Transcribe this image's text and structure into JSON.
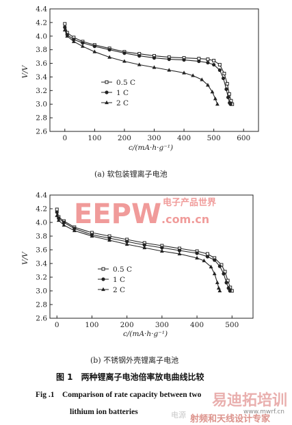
{
  "chart_data": [
    {
      "type": "line",
      "panel_caption": "(a) 软包装锂离子电池",
      "xlabel": "c/(mA·h·g⁻¹)",
      "ylabel": "V/V",
      "xlim": [
        -50,
        650
      ],
      "ylim": [
        2.6,
        4.4
      ],
      "xticks": [
        0,
        100,
        200,
        300,
        400,
        500,
        600
      ],
      "yticks": [
        2.6,
        2.8,
        3.0,
        3.2,
        3.4,
        3.6,
        3.8,
        4.0,
        4.2,
        4.4
      ],
      "legend_position": "left-center",
      "series": [
        {
          "name": "0.5 C",
          "marker": "square",
          "points": [
            [
              0,
              4.18
            ],
            [
              8,
              4.05
            ],
            [
              30,
              3.98
            ],
            [
              60,
              3.92
            ],
            [
              100,
              3.87
            ],
            [
              150,
              3.82
            ],
            [
              200,
              3.77
            ],
            [
              250,
              3.74
            ],
            [
              300,
              3.71
            ],
            [
              350,
              3.69
            ],
            [
              400,
              3.68
            ],
            [
              450,
              3.67
            ],
            [
              480,
              3.66
            ],
            [
              500,
              3.64
            ],
            [
              520,
              3.58
            ],
            [
              535,
              3.45
            ],
            [
              545,
              3.3
            ],
            [
              552,
              3.15
            ],
            [
              558,
              3.05
            ],
            [
              562,
              3.0
            ]
          ]
        },
        {
          "name": "1 C",
          "marker": "circle",
          "points": [
            [
              0,
              4.13
            ],
            [
              8,
              4.02
            ],
            [
              30,
              3.95
            ],
            [
              60,
              3.9
            ],
            [
              100,
              3.85
            ],
            [
              150,
              3.8
            ],
            [
              200,
              3.75
            ],
            [
              250,
              3.71
            ],
            [
              300,
              3.68
            ],
            [
              350,
              3.66
            ],
            [
              400,
              3.65
            ],
            [
              450,
              3.63
            ],
            [
              480,
              3.61
            ],
            [
              500,
              3.58
            ],
            [
              520,
              3.5
            ],
            [
              532,
              3.38
            ],
            [
              542,
              3.22
            ],
            [
              548,
              3.1
            ],
            [
              553,
              3.02
            ],
            [
              556,
              3.0
            ]
          ]
        },
        {
          "name": "2 C",
          "marker": "triangle",
          "points": [
            [
              0,
              4.09
            ],
            [
              8,
              4.0
            ],
            [
              30,
              3.92
            ],
            [
              60,
              3.85
            ],
            [
              100,
              3.77
            ],
            [
              150,
              3.69
            ],
            [
              200,
              3.63
            ],
            [
              250,
              3.58
            ],
            [
              300,
              3.54
            ],
            [
              350,
              3.5
            ],
            [
              400,
              3.46
            ],
            [
              430,
              3.42
            ],
            [
              460,
              3.36
            ],
            [
              480,
              3.28
            ],
            [
              495,
              3.18
            ],
            [
              505,
              3.08
            ],
            [
              512,
              3.0
            ]
          ]
        }
      ]
    },
    {
      "type": "line",
      "panel_caption": "(b) 不锈钢外壳锂离子电池",
      "xlabel": "c/(mA·h·g⁻¹)",
      "ylabel": "V/V",
      "xlim": [
        -20,
        560
      ],
      "ylim": [
        2.6,
        4.4
      ],
      "xticks": [
        0,
        100,
        200,
        300,
        400,
        500
      ],
      "yticks": [
        2.6,
        2.8,
        3.0,
        3.2,
        3.4,
        3.6,
        3.8,
        4.0,
        4.2,
        4.4
      ],
      "legend_position": "left-center",
      "series": [
        {
          "name": "0.5 C",
          "marker": "square",
          "points": [
            [
              0,
              4.19
            ],
            [
              5,
              4.08
            ],
            [
              20,
              4.02
            ],
            [
              50,
              3.93
            ],
            [
              100,
              3.85
            ],
            [
              150,
              3.8
            ],
            [
              200,
              3.75
            ],
            [
              250,
              3.7
            ],
            [
              300,
              3.66
            ],
            [
              350,
              3.62
            ],
            [
              400,
              3.58
            ],
            [
              430,
              3.54
            ],
            [
              450,
              3.48
            ],
            [
              470,
              3.38
            ],
            [
              480,
              3.28
            ],
            [
              488,
              3.15
            ],
            [
              495,
              3.05
            ],
            [
              500,
              3.0
            ]
          ]
        },
        {
          "name": "1 C",
          "marker": "circle",
          "points": [
            [
              0,
              4.15
            ],
            [
              5,
              4.06
            ],
            [
              20,
              4.0
            ],
            [
              50,
              3.91
            ],
            [
              100,
              3.82
            ],
            [
              150,
              3.77
            ],
            [
              200,
              3.72
            ],
            [
              250,
              3.67
            ],
            [
              300,
              3.63
            ],
            [
              350,
              3.59
            ],
            [
              400,
              3.55
            ],
            [
              430,
              3.5
            ],
            [
              450,
              3.45
            ],
            [
              465,
              3.36
            ],
            [
              476,
              3.25
            ],
            [
              484,
              3.12
            ],
            [
              490,
              3.04
            ],
            [
              494,
              3.0
            ]
          ]
        },
        {
          "name": "2 C",
          "marker": "triangle",
          "points": [
            [
              0,
              4.1
            ],
            [
              5,
              4.03
            ],
            [
              20,
              3.96
            ],
            [
              50,
              3.88
            ],
            [
              100,
              3.8
            ],
            [
              150,
              3.74
            ],
            [
              200,
              3.68
            ],
            [
              250,
              3.63
            ],
            [
              300,
              3.58
            ],
            [
              350,
              3.54
            ],
            [
              400,
              3.48
            ],
            [
              420,
              3.44
            ],
            [
              440,
              3.35
            ],
            [
              450,
              3.25
            ],
            [
              458,
              3.12
            ],
            [
              462,
              3.04
            ],
            [
              465,
              3.0
            ]
          ]
        }
      ]
    }
  ],
  "figure_caption_cn": "图 1　两种锂离子电池倍率放电曲线比较",
  "figure_caption_en_line1": "Fig .1　Comparison of rate capacity between two",
  "figure_caption_en_line2": "lithium ion batteries",
  "watermark": {
    "logo": "EEPW",
    "cn": "电子产品世界",
    "url": ".com.cn",
    "bottom_site": "www.mwrf.cn",
    "bottom_cn_large": "易迪拓培训",
    "bottom_cn": "射频和天线设计专家",
    "bottom_gray": "电源"
  }
}
